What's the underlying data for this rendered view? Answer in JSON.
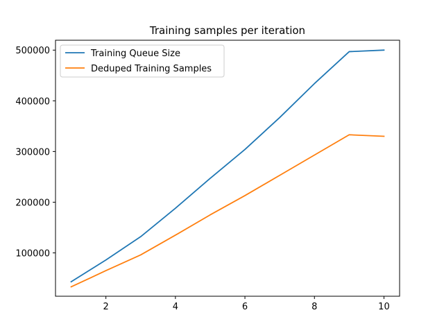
{
  "chart_data": {
    "type": "line",
    "title": "Training samples per iteration",
    "xlabel": "",
    "ylabel": "",
    "xlim": [
      0.55,
      10.45
    ],
    "ylim": [
      14500,
      519500
    ],
    "xticks": [
      2,
      4,
      6,
      8,
      10
    ],
    "yticks": [
      100000,
      200000,
      300000,
      400000,
      500000
    ],
    "grid": false,
    "legend_position": "top-left",
    "series": [
      {
        "name": "Training Queue Size",
        "color": "#1f77b4",
        "x": [
          1,
          2,
          3,
          4,
          5,
          6,
          7,
          8,
          9,
          10
        ],
        "y": [
          43000,
          86000,
          132000,
          188000,
          247000,
          304000,
          367000,
          434000,
          497000,
          500000
        ]
      },
      {
        "name": "Deduped Training Samples",
        "color": "#ff7f0e",
        "x": [
          1,
          2,
          3,
          4,
          5,
          6,
          7,
          8,
          9,
          10
        ],
        "y": [
          33000,
          65000,
          96000,
          135000,
          175000,
          213000,
          253000,
          293000,
          333000,
          330000
        ]
      }
    ]
  }
}
